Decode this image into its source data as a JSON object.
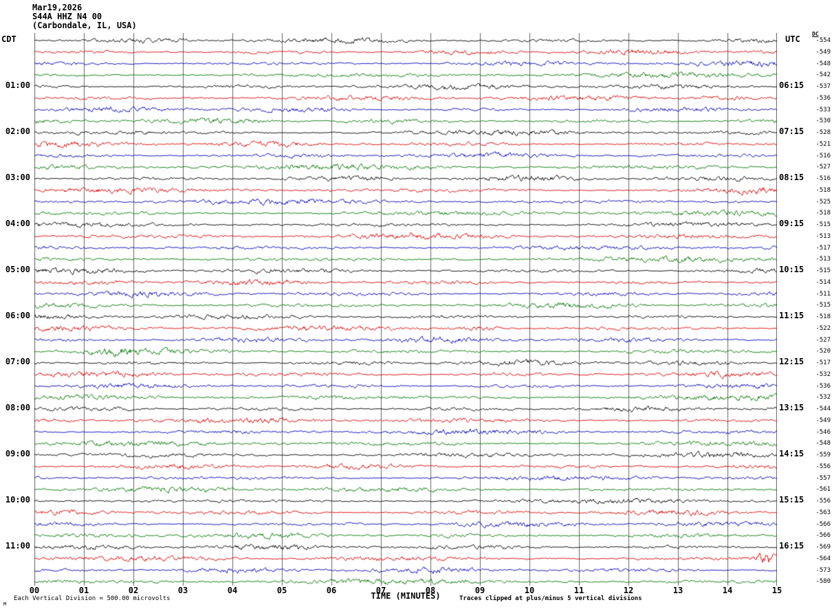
{
  "title": {
    "date": "Mar19,2026",
    "station": "S44A HHZ N4 00",
    "location": "(Carbondale, IL, USA)"
  },
  "axes": {
    "left_header": "CDT",
    "right_header": "UTC",
    "dc_header": "DC"
  },
  "footer": {
    "left": "Each Vertical Division =  500.00 microvolts",
    "right": "Traces clipped at plus/minus 5 vertical divisions",
    "corner_mark": "M"
  },
  "chart_data": {
    "type": "line",
    "description": "Helicorder seismogram: 48 rows of 15 minutes each (12 hours), trace colors cycling black/red/blue/green, continuous background noise with occasional amplitude bursts",
    "minutes_per_row": 15,
    "rows_per_hour": 4,
    "x_label": "TIME (MINUTES)",
    "x_ticks": [
      "00",
      "01",
      "02",
      "03",
      "04",
      "05",
      "06",
      "07",
      "08",
      "09",
      "10",
      "11",
      "12",
      "13",
      "14",
      "15"
    ],
    "color_cycle": [
      "#000000",
      "#dd0000",
      "#0000bb",
      "#007700"
    ],
    "rows": [
      {
        "cdt": "",
        "utc": "",
        "dc": -554
      },
      {
        "cdt": "",
        "utc": "",
        "dc": -549
      },
      {
        "cdt": "",
        "utc": "",
        "dc": -548
      },
      {
        "cdt": "",
        "utc": "",
        "dc": -542
      },
      {
        "cdt": "01:00",
        "utc": "06:15",
        "dc": -537
      },
      {
        "cdt": "",
        "utc": "",
        "dc": -536
      },
      {
        "cdt": "",
        "utc": "",
        "dc": -533
      },
      {
        "cdt": "",
        "utc": "",
        "dc": -530
      },
      {
        "cdt": "02:00",
        "utc": "07:15",
        "dc": -528
      },
      {
        "cdt": "",
        "utc": "",
        "dc": -521
      },
      {
        "cdt": "",
        "utc": "",
        "dc": -516
      },
      {
        "cdt": "",
        "utc": "",
        "dc": -527
      },
      {
        "cdt": "03:00",
        "utc": "08:15",
        "dc": -516
      },
      {
        "cdt": "",
        "utc": "",
        "dc": -518
      },
      {
        "cdt": "",
        "utc": "",
        "dc": -525
      },
      {
        "cdt": "",
        "utc": "",
        "dc": -518
      },
      {
        "cdt": "04:00",
        "utc": "09:15",
        "dc": -515
      },
      {
        "cdt": "",
        "utc": "",
        "dc": -513
      },
      {
        "cdt": "",
        "utc": "",
        "dc": -517
      },
      {
        "cdt": "",
        "utc": "",
        "dc": -513
      },
      {
        "cdt": "05:00",
        "utc": "10:15",
        "dc": -515
      },
      {
        "cdt": "",
        "utc": "",
        "dc": -514
      },
      {
        "cdt": "",
        "utc": "",
        "dc": -511
      },
      {
        "cdt": "",
        "utc": "",
        "dc": -515
      },
      {
        "cdt": "06:00",
        "utc": "11:15",
        "dc": -518
      },
      {
        "cdt": "",
        "utc": "",
        "dc": -522
      },
      {
        "cdt": "",
        "utc": "",
        "dc": -527
      },
      {
        "cdt": "",
        "utc": "",
        "dc": -520
      },
      {
        "cdt": "07:00",
        "utc": "12:15",
        "dc": -517
      },
      {
        "cdt": "",
        "utc": "",
        "dc": -532
      },
      {
        "cdt": "",
        "utc": "",
        "dc": -536
      },
      {
        "cdt": "",
        "utc": "",
        "dc": -532
      },
      {
        "cdt": "08:00",
        "utc": "13:15",
        "dc": -544
      },
      {
        "cdt": "",
        "utc": "",
        "dc": -549
      },
      {
        "cdt": "",
        "utc": "",
        "dc": -546
      },
      {
        "cdt": "",
        "utc": "",
        "dc": -548
      },
      {
        "cdt": "09:00",
        "utc": "14:15",
        "dc": -559
      },
      {
        "cdt": "",
        "utc": "",
        "dc": -556
      },
      {
        "cdt": "",
        "utc": "",
        "dc": -557
      },
      {
        "cdt": "",
        "utc": "",
        "dc": -561
      },
      {
        "cdt": "10:00",
        "utc": "15:15",
        "dc": -556
      },
      {
        "cdt": "",
        "utc": "",
        "dc": -563
      },
      {
        "cdt": "",
        "utc": "",
        "dc": -566
      },
      {
        "cdt": "",
        "utc": "",
        "dc": -566
      },
      {
        "cdt": "11:00",
        "utc": "16:15",
        "dc": -569
      },
      {
        "cdt": "",
        "utc": "",
        "dc": -564
      },
      {
        "cdt": "",
        "utc": "",
        "dc": -573
      },
      {
        "cdt": "",
        "utc": "",
        "dc": -580
      }
    ],
    "events": [
      {
        "row": 45,
        "minute": 14.8,
        "size": "large"
      },
      {
        "row": 27,
        "minute": 1.6,
        "size": "medium"
      },
      {
        "row": 25,
        "minute": 9.0,
        "size": "small"
      },
      {
        "row": 13,
        "minute": 14.3,
        "size": "small"
      },
      {
        "row": 5,
        "minute": 13.9,
        "size": "small"
      }
    ]
  }
}
